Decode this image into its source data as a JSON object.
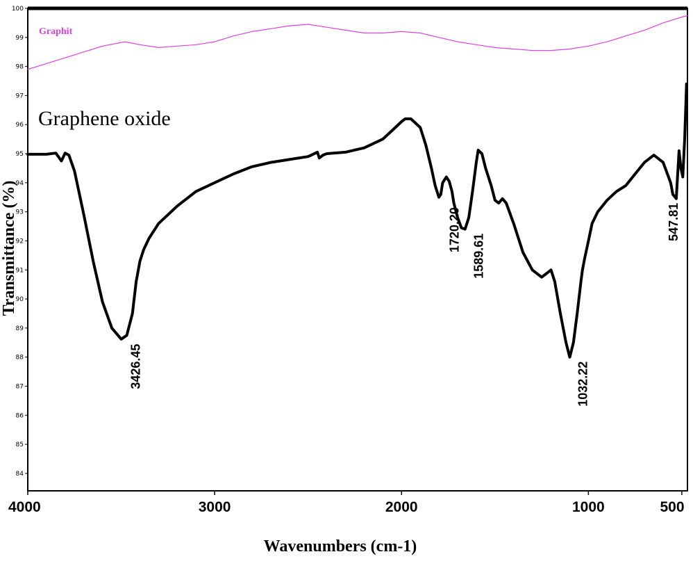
{
  "chart_data": {
    "type": "line",
    "xlabel": "Wavenumbers (cm-1)",
    "ylabel": "Transmittance (%)",
    "xlim": [
      4000,
      470
    ],
    "ylim": [
      83.4,
      100
    ],
    "x_reversed": true,
    "grid": false,
    "x_ticks": [
      4000,
      3000,
      2000,
      1000,
      500
    ],
    "y_ticks": [
      84,
      85,
      86,
      87,
      88,
      89,
      90,
      91,
      92,
      93,
      94,
      95,
      96,
      97,
      98,
      99,
      100
    ],
    "series": [
      {
        "name": "Graphit",
        "color": "#e040e0",
        "x": [
          4000,
          3900,
          3750,
          3600,
          3480,
          3400,
          3300,
          3200,
          3100,
          3000,
          2900,
          2800,
          2700,
          2600,
          2500,
          2400,
          2300,
          2200,
          2100,
          2000,
          1900,
          1800,
          1700,
          1600,
          1500,
          1400,
          1300,
          1200,
          1100,
          1000,
          900,
          800,
          700,
          600,
          500,
          470
        ],
        "values": [
          97.9,
          98.1,
          98.4,
          98.7,
          98.85,
          98.75,
          98.65,
          98.7,
          98.75,
          98.85,
          99.05,
          99.2,
          99.3,
          99.4,
          99.45,
          99.35,
          99.25,
          99.15,
          99.15,
          99.2,
          99.15,
          99.0,
          98.85,
          98.75,
          98.65,
          98.6,
          98.55,
          98.55,
          98.6,
          98.7,
          98.85,
          99.05,
          99.25,
          99.5,
          99.7,
          99.75
        ]
      },
      {
        "name": "Graphene oxide",
        "color": "#000000",
        "x": [
          4000,
          3900,
          3850,
          3820,
          3800,
          3780,
          3750,
          3700,
          3650,
          3600,
          3550,
          3500,
          3470,
          3440,
          3420,
          3400,
          3380,
          3350,
          3300,
          3200,
          3100,
          3000,
          2900,
          2800,
          2700,
          2600,
          2500,
          2450,
          2440,
          2420,
          2400,
          2300,
          2200,
          2100,
          2050,
          2000,
          1980,
          1950,
          1900,
          1870,
          1840,
          1820,
          1800,
          1790,
          1780,
          1760,
          1745,
          1730,
          1720,
          1700,
          1680,
          1660,
          1640,
          1620,
          1600,
          1590,
          1570,
          1550,
          1520,
          1500,
          1480,
          1460,
          1440,
          1400,
          1350,
          1300,
          1250,
          1220,
          1200,
          1180,
          1150,
          1120,
          1100,
          1080,
          1060,
          1040,
          1032,
          1020,
          1000,
          980,
          950,
          900,
          850,
          800,
          750,
          700,
          650,
          600,
          560,
          548,
          530,
          515,
          505,
          495,
          485,
          475
        ],
        "values": [
          94.98,
          94.98,
          95.02,
          94.75,
          95.02,
          94.95,
          94.4,
          92.9,
          91.3,
          89.9,
          89.0,
          88.62,
          88.75,
          89.5,
          90.6,
          91.3,
          91.7,
          92.1,
          92.6,
          93.2,
          93.7,
          94.0,
          94.3,
          94.55,
          94.7,
          94.8,
          94.9,
          95.05,
          94.85,
          94.95,
          95.0,
          95.05,
          95.2,
          95.5,
          95.8,
          96.1,
          96.2,
          96.2,
          95.9,
          95.3,
          94.5,
          93.9,
          93.5,
          93.6,
          94.0,
          94.2,
          94.05,
          93.7,
          93.3,
          92.8,
          92.45,
          92.4,
          92.8,
          93.7,
          94.7,
          95.12,
          95.0,
          94.5,
          93.9,
          93.4,
          93.3,
          93.45,
          93.3,
          92.6,
          91.6,
          91.0,
          90.75,
          90.9,
          91.0,
          90.6,
          89.5,
          88.5,
          88.0,
          88.5,
          89.5,
          90.6,
          91.0,
          91.4,
          92.0,
          92.6,
          93.0,
          93.4,
          93.7,
          93.9,
          94.3,
          94.7,
          94.95,
          94.7,
          94.0,
          93.6,
          93.45,
          95.1,
          94.5,
          94.2,
          95.5,
          97.4
        ]
      }
    ],
    "series_labels": {
      "graphit": "Graphit",
      "graphene_oxide": "Graphene oxide"
    },
    "annotations": [
      {
        "label": "3426.45",
        "x": 3426.45,
        "y": 88.6
      },
      {
        "label": "1720.20",
        "x": 1720.2,
        "y": 93.3
      },
      {
        "label": "1589.61",
        "x": 1589.61,
        "y": 92.4
      },
      {
        "label": "1032.22",
        "x": 1032.22,
        "y": 88.0
      },
      {
        "label": "547.81",
        "x": 547.81,
        "y": 93.45
      }
    ]
  }
}
